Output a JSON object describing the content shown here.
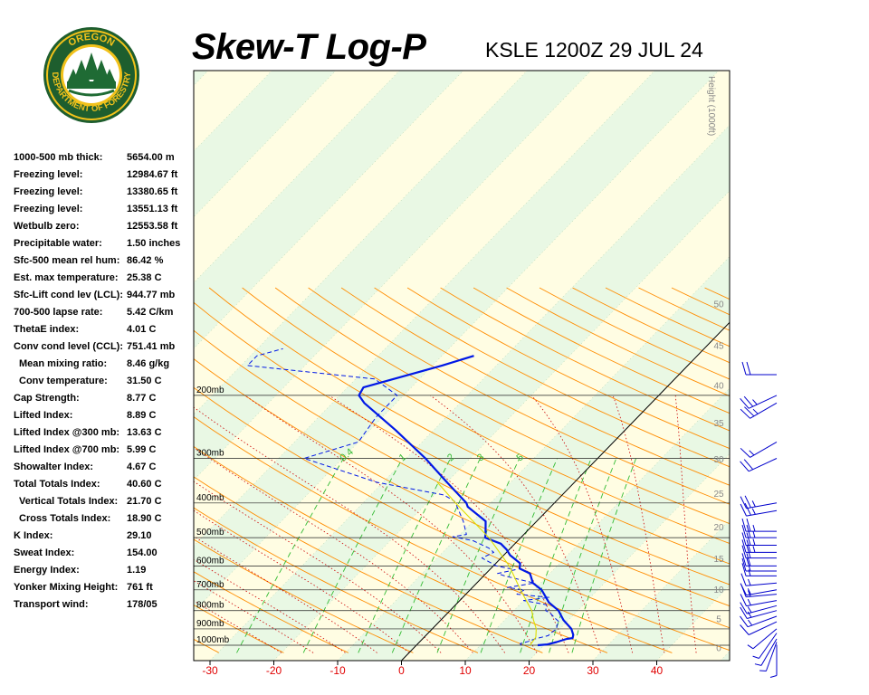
{
  "header": {
    "title": "Skew-T Log-P",
    "station": "KSLE 1200Z 29 JUL 24"
  },
  "logo": {
    "top_text": "OREGON",
    "bottom_text": "DEPARTMENT OF FORESTRY",
    "colors": {
      "ring": "#1e5e2e",
      "gold": "#f2c21b",
      "tree": "#1f6b34"
    }
  },
  "stats": [
    {
      "label": "1000-500 mb thick:",
      "value": "5654.00 m",
      "indent": false
    },
    {
      "label": "Freezing level:",
      "value": "12984.67 ft",
      "indent": false
    },
    {
      "label": "Freezing level:",
      "value": "13380.65 ft",
      "indent": false
    },
    {
      "label": "Freezing level:",
      "value": "13551.13 ft",
      "indent": false
    },
    {
      "label": "Wetbulb zero:",
      "value": "12553.58 ft",
      "indent": false
    },
    {
      "label": "Precipitable water:",
      "value": "1.50 inches",
      "indent": false
    },
    {
      "label": "Sfc-500 mean rel hum:",
      "value": "86.42 %",
      "indent": false
    },
    {
      "label": "Est. max temperature:",
      "value": "25.38 C",
      "indent": false
    },
    {
      "label": "Sfc-Lift cond lev (LCL):",
      "value": "944.77 mb",
      "indent": false
    },
    {
      "label": "700-500 lapse rate:",
      "value": "5.42 C/km",
      "indent": false
    },
    {
      "label": "ThetaE index:",
      "value": "4.01 C",
      "indent": false
    },
    {
      "label": "Conv cond level (CCL):",
      "value": "751.41 mb",
      "indent": false
    },
    {
      "label": "Mean mixing ratio:",
      "value": "8.46 g/kg",
      "indent": true
    },
    {
      "label": "Conv temperature:",
      "value": "31.50 C",
      "indent": true
    },
    {
      "label": "Cap Strength:",
      "value": "8.77 C",
      "indent": false
    },
    {
      "label": "Lifted Index:",
      "value": "8.89 C",
      "indent": false
    },
    {
      "label": "Lifted Index @300 mb:",
      "value": "13.63 C",
      "indent": false
    },
    {
      "label": "Lifted Index @700 mb:",
      "value": "5.99 C",
      "indent": false
    },
    {
      "label": "Showalter Index:",
      "value": "4.67 C",
      "indent": false
    },
    {
      "label": "Total Totals Index:",
      "value": "40.60 C",
      "indent": false
    },
    {
      "label": "Vertical Totals Index:",
      "value": "21.70 C",
      "indent": true
    },
    {
      "label": "Cross Totals Index:",
      "value": "18.90 C",
      "indent": true
    },
    {
      "label": "K Index:",
      "value": "29.10",
      "indent": false
    },
    {
      "label": "Sweat Index:",
      "value": "154.00",
      "indent": false
    },
    {
      "label": "Energy Index:",
      "value": "1.19",
      "indent": false
    },
    {
      "label": "Yonker Mixing Height:",
      "value": "761 ft",
      "indent": false
    },
    {
      "label": "Transport wind:",
      "value": "178/05",
      "indent": false
    }
  ],
  "chart_data": {
    "type": "line",
    "x_axis": {
      "ticks": [
        -30,
        -20,
        -10,
        0,
        10,
        20,
        30,
        40
      ],
      "tick_color": "#e00000"
    },
    "pressure_axis": {
      "ticks": [
        1000,
        900,
        800,
        700,
        600,
        500,
        400,
        300,
        200
      ],
      "labels": [
        "1000mb",
        "900mb",
        "800mb",
        "700mb",
        "600mb",
        "500mb",
        "400mb",
        "300mb",
        "200mb"
      ]
    },
    "height_axis": {
      "label": "Height (1000ft)",
      "ticks": [
        0,
        5,
        10,
        15,
        20,
        25,
        30,
        35,
        40,
        45,
        50
      ]
    },
    "mixing_ratio_labels": [
      "0.4",
      "1",
      "2",
      "3",
      "5"
    ],
    "colors": {
      "background_warm": "#fffde3",
      "background_cool": "#e9f8e4",
      "isobar": "#222222",
      "dry_adiabat": "#ff8c00",
      "moist_adiabat": "#cc0000",
      "mixing_ratio": "#33bb33",
      "temperature": "#0018e6",
      "dewpoint": "#0018e6",
      "parcel": "#dddd00",
      "zero_isotherm": "#000000",
      "height_text": "#888888"
    },
    "series": [
      {
        "role": "temperature",
        "points": [
          {
            "p": 1000,
            "t": 19.0
          },
          {
            "p": 995,
            "t": 20.4
          },
          {
            "p": 980,
            "t": 21.5
          },
          {
            "p": 960,
            "t": 22.6
          },
          {
            "p": 955,
            "t": 23.4
          },
          {
            "p": 935,
            "t": 23.0
          },
          {
            "p": 900,
            "t": 21.8
          },
          {
            "p": 850,
            "t": 19.2
          },
          {
            "p": 800,
            "t": 17.0
          },
          {
            "p": 760,
            "t": 14.3
          },
          {
            "p": 700,
            "t": 11.2
          },
          {
            "p": 670,
            "t": 8.8
          },
          {
            "p": 630,
            "t": 6.9
          },
          {
            "p": 610,
            "t": 4.5
          },
          {
            "p": 590,
            "t": 3.8
          },
          {
            "p": 560,
            "t": 1.0
          },
          {
            "p": 540,
            "t": -0.4
          },
          {
            "p": 520,
            "t": -2.2
          },
          {
            "p": 500,
            "t": -5.6
          },
          {
            "p": 490,
            "t": -6.0
          },
          {
            "p": 450,
            "t": -8.0
          },
          {
            "p": 410,
            "t": -13.0
          },
          {
            "p": 400,
            "t": -13.8
          },
          {
            "p": 350,
            "t": -20.0
          },
          {
            "p": 300,
            "t": -27.0
          },
          {
            "p": 250,
            "t": -36.0
          },
          {
            "p": 210,
            "t": -45.0
          },
          {
            "p": 200,
            "t": -47.0
          },
          {
            "p": 190,
            "t": -47.5
          },
          {
            "p": 165,
            "t": -38.5
          },
          {
            "p": 155,
            "t": -35.0
          }
        ]
      },
      {
        "role": "dewpoint",
        "points": [
          {
            "p": 1000,
            "t": 16.5
          },
          {
            "p": 990,
            "t": 16.0
          },
          {
            "p": 975,
            "t": 17.0
          },
          {
            "p": 960,
            "t": 17.6
          },
          {
            "p": 940,
            "t": 19.2
          },
          {
            "p": 925,
            "t": 19.2
          },
          {
            "p": 900,
            "t": 19.5
          },
          {
            "p": 880,
            "t": 19.0
          },
          {
            "p": 860,
            "t": 18.8
          },
          {
            "p": 840,
            "t": 17.6
          },
          {
            "p": 815,
            "t": 16.2
          },
          {
            "p": 800,
            "t": 15.0
          },
          {
            "p": 770,
            "t": 14.2
          },
          {
            "p": 750,
            "t": 10.0
          },
          {
            "p": 735,
            "t": 13.6
          },
          {
            "p": 720,
            "t": 8.0
          },
          {
            "p": 700,
            "t": 8.5
          },
          {
            "p": 690,
            "t": 5.5
          },
          {
            "p": 670,
            "t": 9.0
          },
          {
            "p": 640,
            "t": 3.3
          },
          {
            "p": 630,
            "t": 1.8
          },
          {
            "p": 615,
            "t": 4.0
          },
          {
            "p": 600,
            "t": 0.5
          },
          {
            "p": 570,
            "t": -3.0
          },
          {
            "p": 550,
            "t": -2.0
          },
          {
            "p": 535,
            "t": -3.4
          },
          {
            "p": 510,
            "t": -7.0
          },
          {
            "p": 497,
            "t": -10.8
          },
          {
            "p": 490,
            "t": -9.0
          },
          {
            "p": 450,
            "t": -11.5
          },
          {
            "p": 400,
            "t": -15.5
          },
          {
            "p": 395,
            "t": -16.0
          },
          {
            "p": 380,
            "t": -18.5
          },
          {
            "p": 350,
            "t": -31.0
          },
          {
            "p": 300,
            "t": -46.0
          },
          {
            "p": 270,
            "t": -40.0
          },
          {
            "p": 230,
            "t": -41.0
          },
          {
            "p": 200,
            "t": -41.0
          },
          {
            "p": 180,
            "t": -47.0
          },
          {
            "p": 165,
            "t": -69.0
          },
          {
            "p": 155,
            "t": -69.0
          },
          {
            "p": 148,
            "t": -66.0
          }
        ]
      },
      {
        "role": "parcel",
        "points": [
          {
            "p": 1000,
            "t": 17.8
          },
          {
            "p": 950,
            "t": 17.5
          },
          {
            "p": 900,
            "t": 16.3
          },
          {
            "p": 850,
            "t": 14.5
          },
          {
            "p": 800,
            "t": 12.8
          },
          {
            "p": 700,
            "t": 7.9
          },
          {
            "p": 600,
            "t": 2.5
          },
          {
            "p": 500,
            "t": -5.0
          },
          {
            "p": 400,
            "t": -15.5
          },
          {
            "p": 350,
            "t": -21.5
          }
        ]
      }
    ],
    "wind_barbs": [
      {
        "p": 997,
        "dir": 180,
        "spd": 5
      },
      {
        "p": 980,
        "dir": 200,
        "spd": 5
      },
      {
        "p": 960,
        "dir": 210,
        "spd": 5
      },
      {
        "p": 925,
        "dir": 215,
        "spd": 5
      },
      {
        "p": 900,
        "dir": 230,
        "spd": 5
      },
      {
        "p": 860,
        "dir": 245,
        "spd": 10
      },
      {
        "p": 830,
        "dir": 250,
        "spd": 15
      },
      {
        "p": 800,
        "dir": 255,
        "spd": 15
      },
      {
        "p": 775,
        "dir": 255,
        "spd": 15
      },
      {
        "p": 750,
        "dir": 260,
        "spd": 15
      },
      {
        "p": 720,
        "dir": 265,
        "spd": 15
      },
      {
        "p": 700,
        "dir": 260,
        "spd": 15
      },
      {
        "p": 670,
        "dir": 265,
        "spd": 15
      },
      {
        "p": 640,
        "dir": 270,
        "spd": 15
      },
      {
        "p": 620,
        "dir": 270,
        "spd": 20
      },
      {
        "p": 600,
        "dir": 270,
        "spd": 20
      },
      {
        "p": 570,
        "dir": 270,
        "spd": 20
      },
      {
        "p": 550,
        "dir": 270,
        "spd": 25
      },
      {
        "p": 525,
        "dir": 270,
        "spd": 25
      },
      {
        "p": 500,
        "dir": 270,
        "spd": 25
      },
      {
        "p": 480,
        "dir": 270,
        "spd": 25
      },
      {
        "p": 420,
        "dir": 260,
        "spd": 25
      },
      {
        "p": 400,
        "dir": 260,
        "spd": 25
      },
      {
        "p": 300,
        "dir": 245,
        "spd": 20
      },
      {
        "p": 270,
        "dir": 240,
        "spd": 15
      },
      {
        "p": 210,
        "dir": 240,
        "spd": 25
      },
      {
        "p": 200,
        "dir": 245,
        "spd": 25
      },
      {
        "p": 175,
        "dir": 270,
        "spd": 20
      }
    ]
  }
}
